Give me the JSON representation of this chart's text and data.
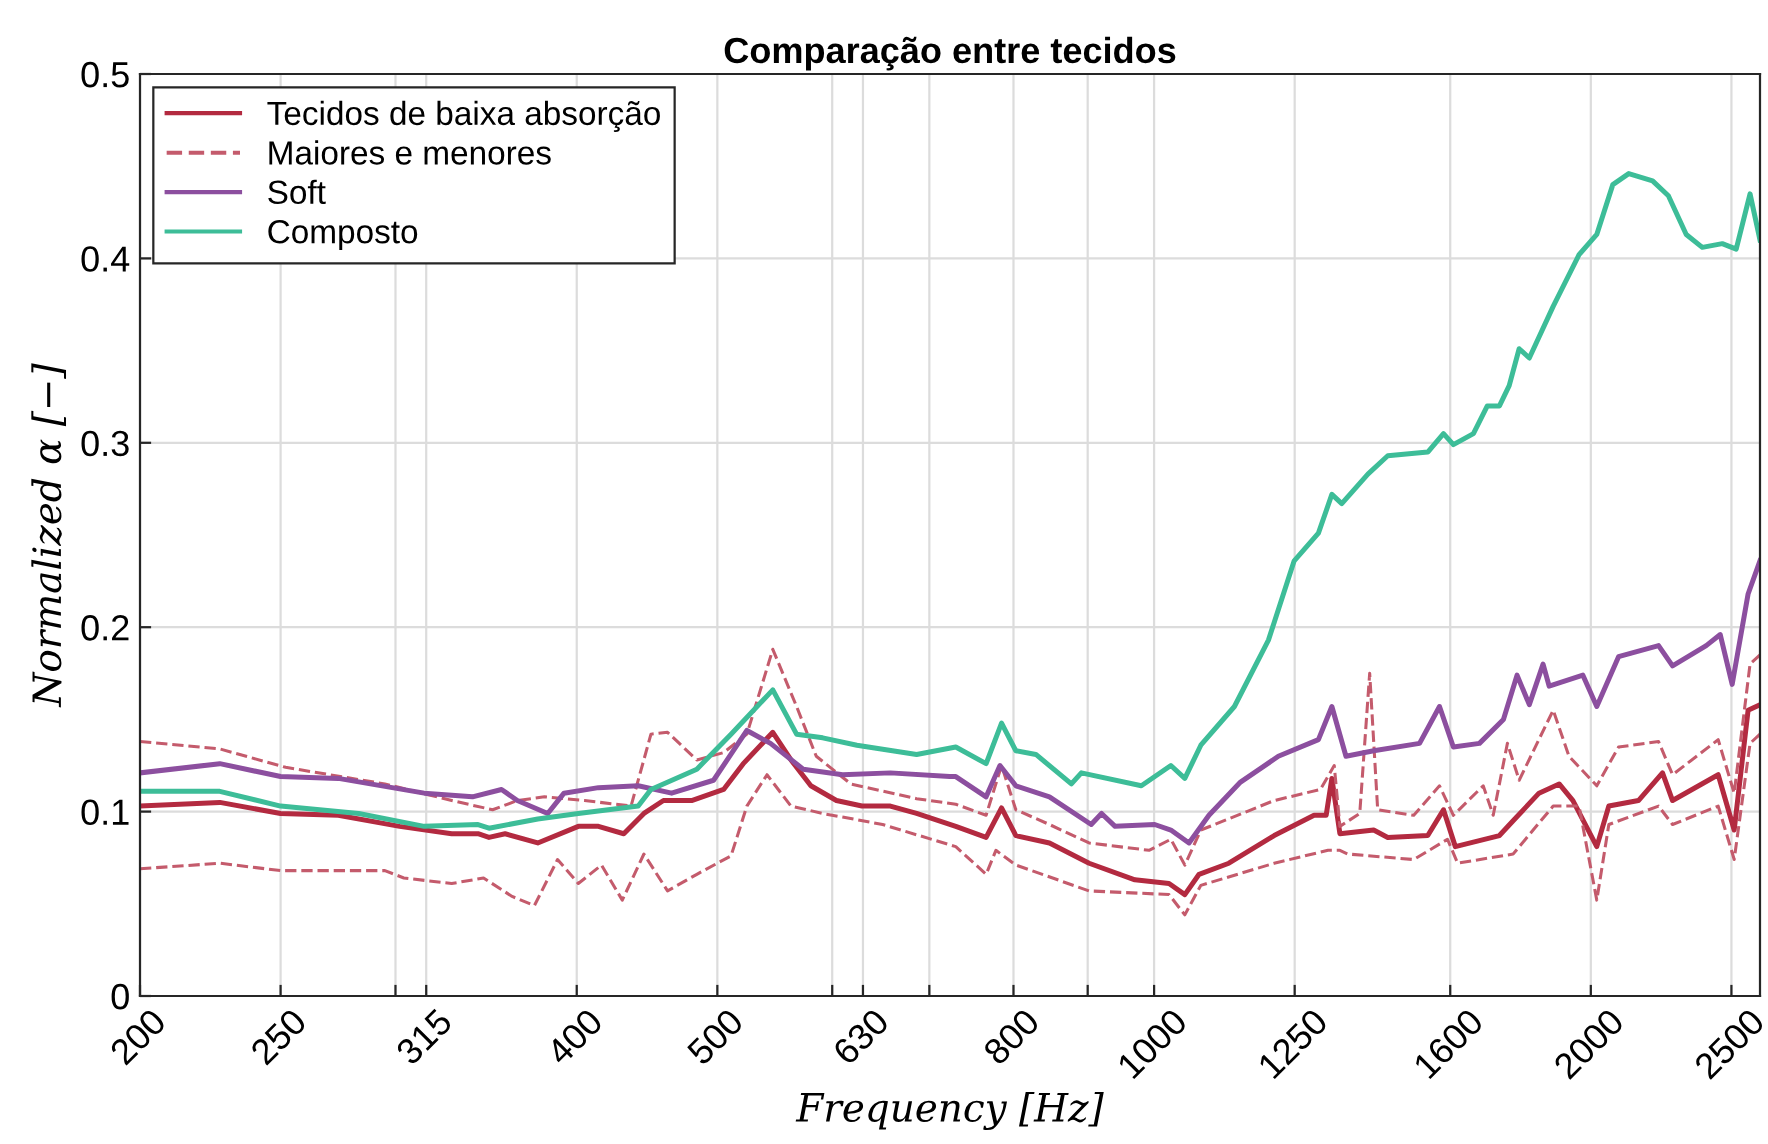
{
  "chart_data": {
    "type": "line",
    "title": "Comparação entre tecidos",
    "xlabel": "Frequency [Hz]",
    "ylabel": "Normalized α [−]",
    "log": "x",
    "xlim": [
      200,
      2616
    ],
    "ylim": [
      0,
      0.5
    ],
    "xticks": [
      200,
      250,
      {
        "value": 300,
        "label": null
      },
      315,
      400,
      500,
      {
        "value": 600,
        "label": null
      },
      630,
      {
        "value": 700,
        "label": null
      },
      800,
      {
        "value": 900,
        "label": null
      },
      1000,
      1250,
      1600,
      2000,
      2500
    ],
    "yticks": [
      0,
      0.1,
      0.2,
      0.3,
      0.4,
      0.5
    ],
    "grid": true,
    "legend": "top left",
    "series": [
      {
        "name": "Tecidos de baixa absorção",
        "color": "#b32a40",
        "line_style": "solid",
        "x": [
          200,
          227,
          250,
          274,
          302,
          328,
          342,
          348,
          357,
          376,
          401,
          414,
          431,
          445,
          459,
          480,
          505,
          521,
          546,
          562,
          580,
          604,
          629,
          658,
          686,
          730,
          766,
          785,
          803,
          847,
          902,
          970,
          1024,
          1050,
          1074,
          1126,
          1210,
          1289,
          1314,
          1326,
          1343,
          1417,
          1449,
          1544,
          1583,
          1613,
          1730,
          1768,
          1842,
          1902,
          1944,
          2019,
          2058,
          2157,
          2241,
          2277,
          2448,
          2511,
          2567,
          2616
        ],
        "values": [
          0.103,
          0.105,
          0.099,
          0.098,
          0.092,
          0.088,
          0.088,
          0.086,
          0.088,
          0.083,
          0.092,
          0.092,
          0.088,
          0.099,
          0.106,
          0.106,
          0.112,
          0.126,
          0.143,
          0.128,
          0.114,
          0.106,
          0.103,
          0.103,
          0.099,
          0.092,
          0.086,
          0.102,
          0.087,
          0.083,
          0.072,
          0.063,
          0.061,
          0.055,
          0.066,
          0.072,
          0.087,
          0.098,
          0.098,
          0.118,
          0.088,
          0.09,
          0.086,
          0.087,
          0.101,
          0.081,
          0.087,
          0.095,
          0.11,
          0.115,
          0.106,
          0.081,
          0.103,
          0.106,
          0.121,
          0.106,
          0.12,
          0.09,
          0.155,
          0.158
        ]
      },
      {
        "name": "Maiores e menores",
        "color": "#c45b6c",
        "line_style": "dashed",
        "x": [
          200,
          227,
          252,
          295,
          328,
          350,
          364,
          380,
          405,
          436,
          450,
          462,
          484,
          505,
          524,
          546,
          567,
          585,
          618,
          686,
          730,
          766,
          785,
          803,
          847,
          902,
          992,
          1027,
          1050,
          1077,
          1210,
          1302,
          1331,
          1343,
          1386,
          1408,
          1426,
          1510,
          1573,
          1608,
          1686,
          1713,
          1752,
          1785,
          1884,
          1932,
          2019,
          2090,
          2227,
          2277,
          2448,
          2511,
          2575,
          2616
        ],
        "values": [
          0.138,
          0.134,
          0.124,
          0.115,
          0.106,
          0.101,
          0.106,
          0.108,
          0.106,
          0.103,
          0.142,
          0.143,
          0.128,
          0.132,
          0.142,
          0.188,
          0.157,
          0.13,
          0.115,
          0.107,
          0.104,
          0.098,
          0.125,
          0.101,
          0.093,
          0.083,
          0.079,
          0.085,
          0.071,
          0.09,
          0.106,
          0.112,
          0.125,
          0.092,
          0.099,
          0.175,
          0.101,
          0.098,
          0.114,
          0.098,
          0.114,
          0.098,
          0.137,
          0.117,
          0.155,
          0.13,
          0.114,
          0.135,
          0.138,
          0.12,
          0.139,
          0.11,
          0.18,
          0.185
        ]
      },
      {
        "color": "#c45b6c",
        "line_style": "dashed",
        "x": [
          200,
          227,
          250,
          295,
          304,
          328,
          345,
          361,
          374,
          388,
          401,
          416,
          430,
          445,
          462,
          484,
          511,
          524,
          541,
          562,
          591,
          650,
          730,
          766,
          778,
          803,
          902,
          1024,
          1050,
          1077,
          1210,
          1318,
          1343,
          1360,
          1510,
          1593,
          1619,
          1768,
          1884,
          1963,
          2019,
          2058,
          2227,
          2277,
          2448,
          2511,
          2575,
          2616
        ],
        "values": [
          0.069,
          0.072,
          0.068,
          0.068,
          0.064,
          0.061,
          0.064,
          0.054,
          0.049,
          0.074,
          0.061,
          0.071,
          0.052,
          0.077,
          0.057,
          0.066,
          0.076,
          0.103,
          0.12,
          0.103,
          0.099,
          0.093,
          0.081,
          0.066,
          0.079,
          0.071,
          0.057,
          0.055,
          0.044,
          0.06,
          0.072,
          0.079,
          0.079,
          0.077,
          0.074,
          0.085,
          0.072,
          0.077,
          0.103,
          0.103,
          0.052,
          0.093,
          0.103,
          0.093,
          0.103,
          0.074,
          0.137,
          0.142
        ]
      },
      {
        "name": "Soft",
        "color": "#8c4f9f",
        "line_style": "solid",
        "x": [
          200,
          227,
          250,
          274,
          314,
          339,
          355,
          364,
          382,
          392,
          414,
          441,
          465,
          497,
          524,
          544,
          573,
          610,
          658,
          723,
          730,
          766,
          783,
          803,
          847,
          905,
          920,
          940,
          1001,
          1027,
          1057,
          1091,
          1147,
          1218,
          1298,
          1326,
          1356,
          1417,
          1524,
          1573,
          1608,
          1676,
          1741,
          1779,
          1814,
          1854,
          1872,
          1975,
          2019,
          2090,
          2227,
          2277,
          2402,
          2456,
          2503,
          2567,
          2616
        ],
        "values": [
          0.121,
          0.126,
          0.119,
          0.118,
          0.11,
          0.108,
          0.112,
          0.106,
          0.099,
          0.11,
          0.113,
          0.114,
          0.11,
          0.117,
          0.144,
          0.137,
          0.123,
          0.12,
          0.121,
          0.119,
          0.119,
          0.108,
          0.125,
          0.114,
          0.108,
          0.093,
          0.099,
          0.092,
          0.093,
          0.09,
          0.083,
          0.098,
          0.116,
          0.13,
          0.139,
          0.157,
          0.13,
          0.133,
          0.137,
          0.157,
          0.135,
          0.137,
          0.15,
          0.174,
          0.158,
          0.18,
          0.168,
          0.174,
          0.157,
          0.184,
          0.19,
          0.179,
          0.19,
          0.196,
          0.169,
          0.218,
          0.236
        ]
      },
      {
        "name": "Composto",
        "color": "#3dbd98",
        "line_style": "solid",
        "x": [
          200,
          227,
          250,
          283,
          314,
          342,
          348,
          376,
          401,
          441,
          450,
          484,
          511,
          546,
          567,
          591,
          624,
          686,
          730,
          766,
          785,
          803,
          829,
          877,
          891,
          980,
          1027,
          1050,
          1077,
          1136,
          1199,
          1249,
          1298,
          1326,
          1347,
          1404,
          1449,
          1544,
          1583,
          1608,
          1660,
          1697,
          1730,
          1757,
          1785,
          1814,
          1884,
          1963,
          2019,
          2071,
          2124,
          2206,
          2262,
          2327,
          2387,
          2464,
          2519,
          2575,
          2616
        ],
        "values": [
          0.111,
          0.111,
          0.103,
          0.099,
          0.092,
          0.093,
          0.091,
          0.096,
          0.099,
          0.103,
          0.112,
          0.123,
          0.142,
          0.166,
          0.142,
          0.14,
          0.136,
          0.131,
          0.135,
          0.126,
          0.148,
          0.133,
          0.131,
          0.115,
          0.121,
          0.114,
          0.125,
          0.118,
          0.136,
          0.157,
          0.193,
          0.236,
          0.251,
          0.272,
          0.267,
          0.283,
          0.293,
          0.295,
          0.305,
          0.299,
          0.305,
          0.32,
          0.32,
          0.331,
          0.351,
          0.346,
          0.374,
          0.402,
          0.413,
          0.44,
          0.446,
          0.442,
          0.434,
          0.413,
          0.406,
          0.408,
          0.405,
          0.435,
          0.41
        ]
      }
    ]
  }
}
